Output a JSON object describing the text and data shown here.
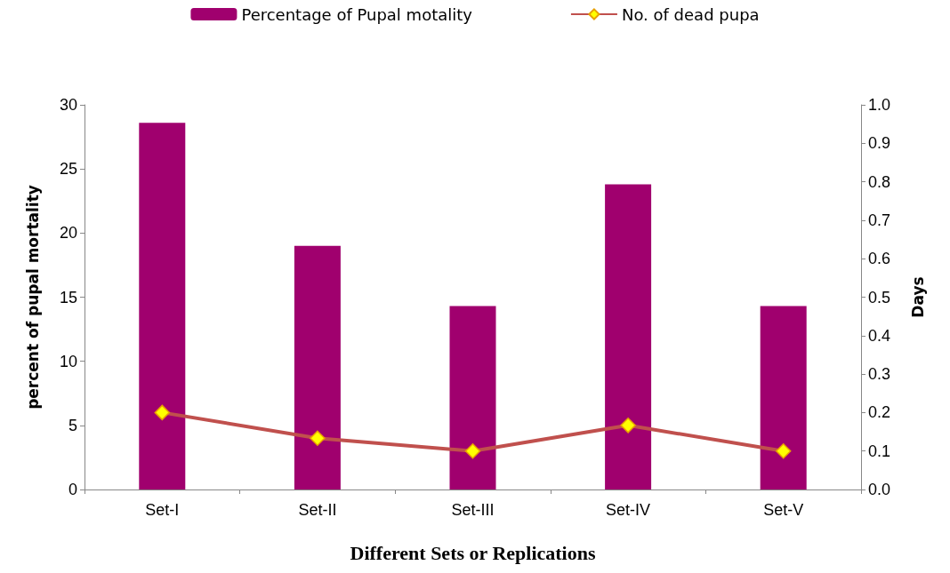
{
  "chart_data": {
    "type": "bar",
    "xlabel": "Different Sets or Replications",
    "ylabel": "percent of pupal mortality",
    "y2label": "Days",
    "categories": [
      "Set-I",
      "Set-II",
      "Set-III",
      "Set-IV",
      "Set-V"
    ],
    "series": [
      {
        "name": "Percentage of Pupal motality",
        "color": "#a0006e",
        "values": [
          28.6,
          19.0,
          14.3,
          23.8,
          14.3
        ]
      },
      {
        "name": "No. of dead pupa",
        "type": "line",
        "color": "#c0504d",
        "marker": "diamond",
        "values": [
          6,
          4,
          3,
          5,
          3
        ]
      }
    ],
    "ylim": [
      0,
      30
    ],
    "yticks": [
      0,
      5,
      10,
      15,
      20,
      25,
      30
    ],
    "y2lim": [
      0,
      1
    ],
    "y2ticks": [
      {
        "value": 0,
        "label": "0.0"
      },
      0.1,
      0.2,
      0.3,
      0.4,
      0.5,
      0.6,
      0.7,
      0.8,
      0.9,
      {
        "value": 1,
        "label": "1.0"
      }
    ],
    "grid": false,
    "legend": "top"
  }
}
